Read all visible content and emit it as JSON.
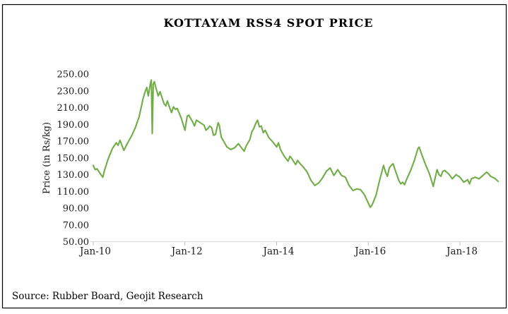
{
  "chart_data": {
    "type": "line",
    "title": "KOTTAYAM RSS4 SPOT PRICE",
    "ylabel": "Price (in Rs/kg)",
    "source": "Source: Rubber Board, Geojit Research",
    "line_color": "#70AD47",
    "ylim": [
      50,
      250
    ],
    "grid": false,
    "legend": "none",
    "y_ticks": [
      {
        "value": 250,
        "label": "250.00"
      },
      {
        "value": 230,
        "label": "230.00"
      },
      {
        "value": 210,
        "label": "210.00"
      },
      {
        "value": 190,
        "label": "190.00"
      },
      {
        "value": 170,
        "label": "170.00"
      },
      {
        "value": 150,
        "label": "150.00"
      },
      {
        "value": 130,
        "label": "130.00"
      },
      {
        "value": 110,
        "label": "110.00"
      },
      {
        "value": 90,
        "label": "90.00"
      },
      {
        "value": 70,
        "label": "70.00"
      },
      {
        "value": 50,
        "label": "50.00"
      }
    ],
    "x_ticks": [
      {
        "month_index": 0,
        "label": "Jan-10"
      },
      {
        "month_index": 24,
        "label": "Jan-12"
      },
      {
        "month_index": 48,
        "label": "Jan-14"
      },
      {
        "month_index": 72,
        "label": "Jan-16"
      },
      {
        "month_index": 96,
        "label": "Jan-18"
      }
    ],
    "x_unit": "months since Jan-2010, data Jan-2010 to Nov-2018",
    "series": [
      {
        "name": "Kottayam RSS4 spot price (Rs/kg)",
        "points": [
          [
            0,
            141
          ],
          [
            0.5,
            136
          ],
          [
            1,
            137
          ],
          [
            2,
            130
          ],
          [
            2.5,
            127
          ],
          [
            3,
            136
          ],
          [
            4,
            150
          ],
          [
            5,
            161
          ],
          [
            6,
            168
          ],
          [
            6.5,
            165
          ],
          [
            7,
            171
          ],
          [
            8,
            159
          ],
          [
            9,
            168
          ],
          [
            10,
            176
          ],
          [
            11,
            186
          ],
          [
            12,
            199
          ],
          [
            13,
            220
          ],
          [
            13.5,
            228
          ],
          [
            14,
            234
          ],
          [
            14.4,
            224
          ],
          [
            15,
            240
          ],
          [
            15.2,
            243
          ],
          [
            15.45,
            179
          ],
          [
            15.7,
            238
          ],
          [
            16,
            241
          ],
          [
            16.5,
            232
          ],
          [
            17,
            224
          ],
          [
            17.5,
            229
          ],
          [
            18,
            222
          ],
          [
            18.5,
            215
          ],
          [
            19,
            212
          ],
          [
            19.4,
            218
          ],
          [
            20,
            210
          ],
          [
            20.5,
            204
          ],
          [
            21,
            211
          ],
          [
            21.5,
            208
          ],
          [
            22,
            209
          ],
          [
            23,
            198
          ],
          [
            24,
            183
          ],
          [
            24.6,
            200
          ],
          [
            25,
            201
          ],
          [
            26,
            193
          ],
          [
            26.5,
            188
          ],
          [
            27,
            195
          ],
          [
            28,
            192
          ],
          [
            29,
            189
          ],
          [
            29.5,
            183
          ],
          [
            30,
            185
          ],
          [
            30.5,
            188
          ],
          [
            31,
            186
          ],
          [
            31.5,
            177
          ],
          [
            32,
            178
          ],
          [
            32.7,
            192
          ],
          [
            33,
            189
          ],
          [
            33.5,
            175
          ],
          [
            34,
            171
          ],
          [
            35,
            163
          ],
          [
            36,
            160
          ],
          [
            37,
            162
          ],
          [
            38,
            167
          ],
          [
            39,
            161
          ],
          [
            39.5,
            158
          ],
          [
            40,
            164
          ],
          [
            41,
            172
          ],
          [
            41.5,
            181
          ],
          [
            42,
            185
          ],
          [
            42.5,
            191
          ],
          [
            43,
            195
          ],
          [
            43.5,
            187
          ],
          [
            44,
            188
          ],
          [
            44.5,
            180
          ],
          [
            45,
            183
          ],
          [
            46,
            174
          ],
          [
            47,
            169
          ],
          [
            48,
            163
          ],
          [
            48.5,
            168
          ],
          [
            49,
            160
          ],
          [
            50,
            152
          ],
          [
            51,
            146
          ],
          [
            51.5,
            152
          ],
          [
            52,
            149
          ],
          [
            53,
            142
          ],
          [
            53.5,
            147
          ],
          [
            54,
            144
          ],
          [
            55,
            139
          ],
          [
            56,
            133
          ],
          [
            57,
            123
          ],
          [
            58,
            117
          ],
          [
            59,
            120
          ],
          [
            60,
            126
          ],
          [
            61,
            134
          ],
          [
            62,
            138
          ],
          [
            63,
            129
          ],
          [
            64,
            136
          ],
          [
            65,
            129
          ],
          [
            66,
            127
          ],
          [
            67,
            117
          ],
          [
            68,
            111
          ],
          [
            69,
            113
          ],
          [
            70,
            112
          ],
          [
            71,
            106
          ],
          [
            72,
            96
          ],
          [
            72.5,
            91
          ],
          [
            73,
            94
          ],
          [
            74,
            105
          ],
          [
            75,
            124
          ],
          [
            76,
            141
          ],
          [
            76.5,
            133
          ],
          [
            77,
            128
          ],
          [
            77.5,
            138
          ],
          [
            78,
            141
          ],
          [
            78.5,
            143
          ],
          [
            79,
            136
          ],
          [
            80,
            123
          ],
          [
            80.5,
            119
          ],
          [
            81,
            121
          ],
          [
            81.5,
            118
          ],
          [
            82,
            124
          ],
          [
            83,
            134
          ],
          [
            84,
            146
          ],
          [
            85,
            161
          ],
          [
            85.3,
            163
          ],
          [
            86,
            154
          ],
          [
            87,
            142
          ],
          [
            88,
            131
          ],
          [
            89,
            116
          ],
          [
            90,
            136
          ],
          [
            90.5,
            130
          ],
          [
            91,
            128
          ],
          [
            91.5,
            134
          ],
          [
            92,
            135
          ],
          [
            93,
            131
          ],
          [
            94,
            125
          ],
          [
            95,
            130
          ],
          [
            96,
            127
          ],
          [
            97,
            121
          ],
          [
            98,
            124
          ],
          [
            98.5,
            119
          ],
          [
            99,
            125
          ],
          [
            100,
            127
          ],
          [
            101,
            125
          ],
          [
            102,
            129
          ],
          [
            103,
            133
          ],
          [
            103.5,
            131
          ],
          [
            104,
            128
          ],
          [
            105,
            126
          ],
          [
            106,
            122
          ]
        ]
      }
    ]
  }
}
